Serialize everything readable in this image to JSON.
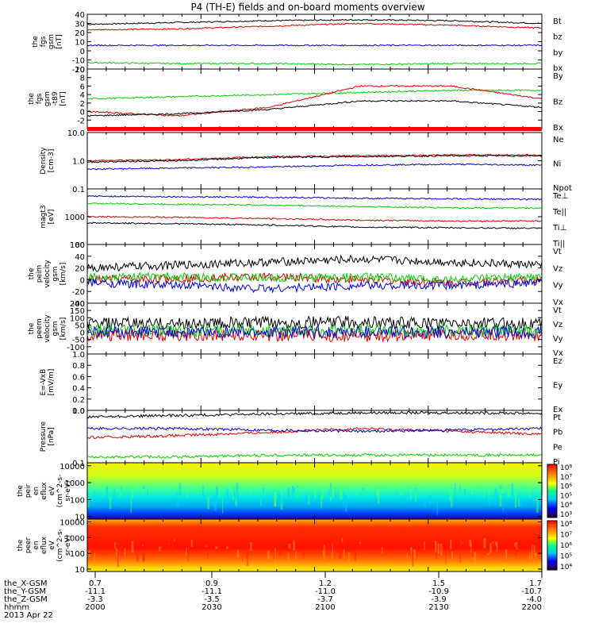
{
  "chart_data": {
    "title": "P4 (TH-E) fields and on-board moments overview",
    "type": "line",
    "panels": [
      {
        "id": "fgs",
        "ylabel": [
          "the",
          "fgs",
          "gsm",
          "[nT]"
        ],
        "ylim": [
          -20,
          40
        ],
        "scale": "linear",
        "yticks": [
          -20,
          -10,
          0,
          10,
          20,
          30,
          40
        ],
        "yticklabels": [
          "-20",
          "-10",
          "0",
          "10",
          "20",
          "30",
          "40"
        ],
        "series": [
          {
            "name": "Bt",
            "color": "#000000",
            "values": [
              29,
              31,
              33,
              34,
              33,
              30
            ]
          },
          {
            "name": "bz",
            "color": "#e00000",
            "values": [
              23,
              24,
              27,
              30,
              28,
              25
            ]
          },
          {
            "name": "by",
            "color": "#00d000",
            "values": [
              -13,
              -14,
              -14,
              -15,
              -14,
              -14
            ]
          },
          {
            "name": "bx",
            "color": "#0000dd",
            "values": [
              6,
              6,
              6,
              6,
              6,
              6
            ]
          }
        ]
      },
      {
        "id": "fgs-minus-t89",
        "ylabel": [
          "the",
          "fgs",
          "gsm",
          "-t89",
          "[nT]"
        ],
        "ylim": [
          -4,
          10
        ],
        "scale": "linear",
        "yticks": [
          -2,
          0,
          2,
          4,
          6,
          8,
          10
        ],
        "yticklabels": [
          "-2",
          "0",
          "2",
          "4",
          "6",
          "8",
          "10"
        ],
        "series": [
          {
            "name": "By",
            "color": "#00d000",
            "values": [
              3,
              3.5,
              4,
              4.5,
              5,
              5
            ]
          },
          {
            "name": "Bz",
            "color": "#e00000",
            "values": [
              0,
              -1,
              1,
              6,
              6,
              3
            ]
          },
          {
            "name": "Bx",
            "color": "#000000",
            "values": [
              -1,
              -0.5,
              0.5,
              2.5,
              2.5,
              1
            ]
          }
        ]
      },
      {
        "id": "density",
        "ylabel": [
          "Density",
          "[cm-3]"
        ],
        "ylim": [
          0.1,
          10
        ],
        "scale": "log",
        "yticks": [
          0.1,
          1,
          10
        ],
        "yticklabels": [
          "0.1",
          "1.0",
          "10.0"
        ],
        "series": [
          {
            "name": "Ne",
            "color": "#e00000",
            "values": [
              1,
              1.1,
              1.4,
              1.5,
              1.6,
              1.6
            ]
          },
          {
            "name": "Ni",
            "color": "#000000",
            "values": [
              0.9,
              1.0,
              1.3,
              1.4,
              1.5,
              1.5
            ]
          },
          {
            "name": "Npot",
            "color": "#0000dd",
            "values": [
              0.5,
              0.55,
              0.6,
              0.7,
              0.75,
              0.7
            ]
          }
        ]
      },
      {
        "id": "magt3",
        "ylabel": [
          "magt3",
          "[eV]"
        ],
        "ylim": [
          100,
          10000
        ],
        "scale": "log",
        "yticks": [
          100,
          1000
        ],
        "yticklabels": [
          "100",
          "1000"
        ],
        "series": [
          {
            "name": "Te⊥",
            "color": "#e00000",
            "values": [
              1000,
              950,
              850,
              750,
              700,
              700
            ]
          },
          {
            "name": "Te||",
            "color": "#000000",
            "values": [
              600,
              560,
              500,
              420,
              400,
              380
            ]
          },
          {
            "name": "Ti⊥",
            "color": "#0000dd",
            "values": [
              5500,
              5200,
              5000,
              4600,
              4400,
              4200
            ]
          },
          {
            "name": "Ti||",
            "color": "#00d000",
            "values": [
              3000,
              2800,
              2600,
              2300,
              2100,
              2000
            ]
          }
        ]
      },
      {
        "id": "peim-velocity",
        "ylabel": [
          "the",
          "peim",
          "velocity",
          "gsm",
          "[km/s]"
        ],
        "ylim": [
          -40,
          60
        ],
        "scale": "linear",
        "yticks": [
          -40,
          -20,
          0,
          20,
          40,
          60
        ],
        "yticklabels": [
          "-40",
          "-20",
          "0",
          "20",
          "40",
          "60"
        ],
        "series": [
          {
            "name": "Vt",
            "color": "#000000",
            "values": [
              20,
              25,
              30,
              35,
              30,
              25
            ]
          },
          {
            "name": "Vz",
            "color": "#e00000",
            "values": [
              0,
              2,
              5,
              0,
              -5,
              0
            ]
          },
          {
            "name": "Vy",
            "color": "#00d000",
            "values": [
              5,
              5,
              3,
              5,
              0,
              5
            ]
          },
          {
            "name": "Vx",
            "color": "#0000dd",
            "values": [
              -5,
              -10,
              -15,
              -10,
              -10,
              -5
            ]
          }
        ]
      },
      {
        "id": "peem-velocity",
        "ylabel": [
          "the",
          "peem",
          "velocity",
          "gsm",
          "[km/s]"
        ],
        "ylim": [
          -150,
          200
        ],
        "scale": "linear",
        "yticks": [
          -100,
          -50,
          0,
          50,
          100,
          150,
          200
        ],
        "yticklabels": [
          "-100",
          "-50",
          "0",
          "50",
          "100",
          "150",
          "200"
        ],
        "series": [
          {
            "name": "Vt",
            "color": "#000000",
            "values": [
              60,
              60,
              65,
              70,
              60,
              60
            ]
          },
          {
            "name": "Vz",
            "color": "#e00000",
            "values": [
              -20,
              -20,
              -20,
              -25,
              -20,
              -20
            ]
          },
          {
            "name": "Vy",
            "color": "#00d000",
            "values": [
              10,
              10,
              10,
              10,
              10,
              10
            ]
          },
          {
            "name": "Vx",
            "color": "#0000dd",
            "values": [
              0,
              0,
              0,
              0,
              0,
              0
            ]
          }
        ]
      },
      {
        "id": "e-vxb",
        "ylabel": [
          "E=-VxB",
          "[mV/m]"
        ],
        "ylim": [
          0,
          1
        ],
        "scale": "linear",
        "yticks": [
          0,
          0.2,
          0.4,
          0.6,
          0.8,
          1.0
        ],
        "yticklabels": [
          "0.0",
          "0.2",
          "0.4",
          "0.6",
          "0.8",
          "1.0"
        ],
        "series": [
          {
            "name": "Ez",
            "color": "#e00000",
            "values": []
          },
          {
            "name": "Ey",
            "color": "#00d000",
            "values": []
          },
          {
            "name": "Ex",
            "color": "#0000dd",
            "values": []
          }
        ]
      },
      {
        "id": "pressure",
        "ylabel": [
          "Pressure",
          "[nPa]"
        ],
        "ylim": [
          0.1,
          1.0
        ],
        "scale": "log",
        "yticks": [
          0.1,
          1.0
        ],
        "yticklabels": [
          "0.1",
          "1.0"
        ],
        "series": [
          {
            "name": "Pt",
            "color": "#000000",
            "values": [
              0.75,
              0.8,
              0.85,
              0.9,
              0.9,
              0.88
            ]
          },
          {
            "name": "Pb",
            "color": "#e00000",
            "values": [
              0.3,
              0.33,
              0.38,
              0.45,
              0.4,
              0.35
            ]
          },
          {
            "name": "Pe",
            "color": "#00d000",
            "values": [
              0.13,
              0.13,
              0.14,
              0.14,
              0.14,
              0.14
            ]
          },
          {
            "name": "Pi",
            "color": "#0000dd",
            "values": [
              0.45,
              0.45,
              0.42,
              0.4,
              0.42,
              0.45
            ]
          }
        ]
      }
    ],
    "spectrograms": [
      {
        "id": "peir-eflux",
        "type": "heatmap",
        "ylabel": [
          "the",
          "peir",
          "en",
          "eflux",
          "eV",
          "(cm^2-s-",
          "sr-eV)"
        ],
        "ylim": [
          7,
          15000
        ],
        "scale": "log",
        "yticks": [
          10,
          100,
          1000,
          10000
        ],
        "yticklabels": [
          "10",
          "100",
          "1000",
          "10000"
        ],
        "colorbar": {
          "range": [
            1000,
            100000000
          ],
          "ticklabels": [
            "10⁸",
            "10⁷",
            "10⁶",
            "10⁵",
            "10⁴",
            "10³"
          ]
        }
      },
      {
        "id": "peer-eflux",
        "type": "heatmap",
        "ylabel": [
          "the",
          "peer",
          "en",
          "eflux",
          "eV",
          "(cm^2-s-",
          "sr-eV)"
        ],
        "ylim": [
          7,
          15000
        ],
        "scale": "log",
        "yticks": [
          10,
          100,
          1000,
          10000
        ],
        "yticklabels": [
          "10",
          "100",
          "1000",
          "10000"
        ],
        "colorbar": {
          "range": [
            5000,
            100000000
          ],
          "ticklabels": [
            "10⁸",
            "10⁷",
            "10⁶",
            "10⁵",
            "10⁴"
          ]
        }
      }
    ],
    "x": {
      "row_labels": [
        "the_X-GSM",
        "the_Y-GSM",
        "the_Z-GSM",
        "hhmm"
      ],
      "columns": [
        [
          "0.7",
          "-11.1",
          "-3.3",
          "2000"
        ],
        [
          "0.9",
          "-11.1",
          "-3.5",
          "2030"
        ],
        [
          "1.2",
          "-11.0",
          "-3.7",
          "2100"
        ],
        [
          "1.5",
          "-10.9",
          "-3.9",
          "2130"
        ],
        [
          "1.7",
          "-10.7",
          "-4.0",
          "2200"
        ]
      ],
      "date": "2013 Apr 22"
    }
  }
}
